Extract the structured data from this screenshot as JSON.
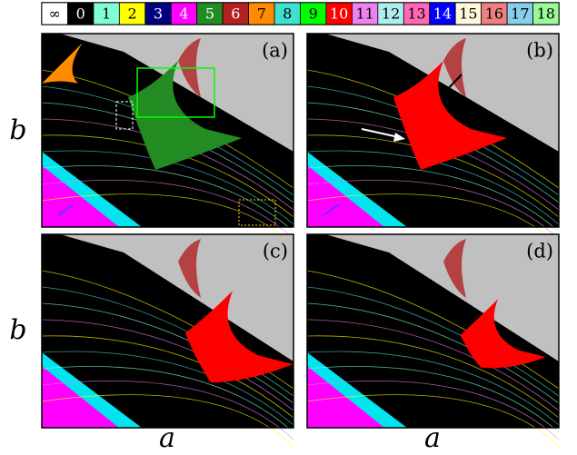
{
  "legend": {
    "labels": [
      "∞",
      "0",
      "1",
      "2",
      "3",
      "4",
      "5",
      "6",
      "7",
      "8",
      "9",
      "10",
      "11",
      "12",
      "13",
      "14",
      "15",
      "16",
      "17",
      "18"
    ],
    "colors": [
      "#ffffff",
      "#000000",
      "#7fffd4",
      "#ffff00",
      "#000080",
      "#ff00ff",
      "#228b22",
      "#b22222",
      "#ff8c00",
      "#40e0d0",
      "#00ff00",
      "#ff0000",
      "#ee82ee",
      "#afeeee",
      "#ff69b4",
      "#0000ff",
      "#fff8dc",
      "#f08080",
      "#87ceeb",
      "#98fb98"
    ]
  },
  "panels": [
    {
      "label": "(a)"
    },
    {
      "label": "(b)"
    },
    {
      "label": "(c)"
    },
    {
      "label": "(d)"
    }
  ],
  "y_label": "b",
  "x_label": "a"
}
